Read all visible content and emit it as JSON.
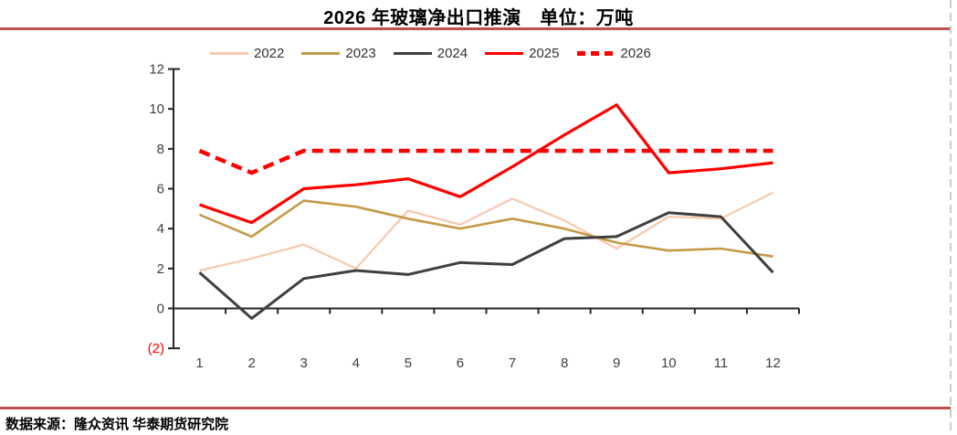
{
  "page": {
    "title": "2026 年玻璃净出口推演　单位：万吨",
    "footer": "数据来源：隆众资讯 华泰期货研究院",
    "accent_rule_color": "#C0504D",
    "border_dash_color": "#CBCBCB"
  },
  "chart_data": {
    "type": "line",
    "title": "2026年玻璃净出口推演",
    "unit": "万吨",
    "xlabel": "",
    "ylabel": "",
    "categories": [
      "1",
      "2",
      "3",
      "4",
      "5",
      "6",
      "7",
      "8",
      "9",
      "10",
      "11",
      "12"
    ],
    "ylim": [
      -2,
      12
    ],
    "grid": false,
    "legend_position": "top",
    "yticks": [
      {
        "value": 12,
        "label": "12",
        "color": "#404040"
      },
      {
        "value": 10,
        "label": "10",
        "color": "#404040"
      },
      {
        "value": 8,
        "label": "8",
        "color": "#404040"
      },
      {
        "value": 6,
        "label": "6",
        "color": "#404040"
      },
      {
        "value": 4,
        "label": "4",
        "color": "#404040"
      },
      {
        "value": 2,
        "label": "2",
        "color": "#404040"
      },
      {
        "value": 0,
        "label": "0",
        "color": "#404040"
      },
      {
        "value": -2,
        "label": "(2)",
        "color": "#FF0000"
      }
    ],
    "series": [
      {
        "name": "2022",
        "color": "#F8C8AE",
        "width": 2.2,
        "dashed": false,
        "values": [
          1.9,
          2.5,
          3.2,
          2.0,
          4.9,
          4.2,
          5.5,
          4.4,
          3.0,
          4.6,
          4.5,
          5.8
        ]
      },
      {
        "name": "2023",
        "color": "#C49A48",
        "width": 2.6,
        "dashed": false,
        "values": [
          4.7,
          3.6,
          5.4,
          5.1,
          4.5,
          4.0,
          4.5,
          4.0,
          3.3,
          2.9,
          3.0,
          2.6
        ]
      },
      {
        "name": "2024",
        "color": "#3F3F3F",
        "width": 3,
        "dashed": false,
        "values": [
          1.8,
          -0.5,
          1.5,
          1.9,
          1.7,
          2.3,
          2.2,
          3.5,
          3.6,
          4.8,
          4.6,
          1.8
        ]
      },
      {
        "name": "2025",
        "color": "#FF0000",
        "width": 3.2,
        "dashed": false,
        "values": [
          5.2,
          4.3,
          6.0,
          6.2,
          6.5,
          5.6,
          7.1,
          8.7,
          10.2,
          6.8,
          7.0,
          7.3
        ]
      },
      {
        "name": "2026",
        "color": "#FF0000",
        "width": 4.5,
        "dashed": true,
        "values": [
          7.9,
          6.8,
          7.9,
          7.9,
          7.9,
          7.9,
          7.9,
          7.9,
          7.9,
          7.9,
          7.9,
          7.9
        ]
      }
    ]
  }
}
